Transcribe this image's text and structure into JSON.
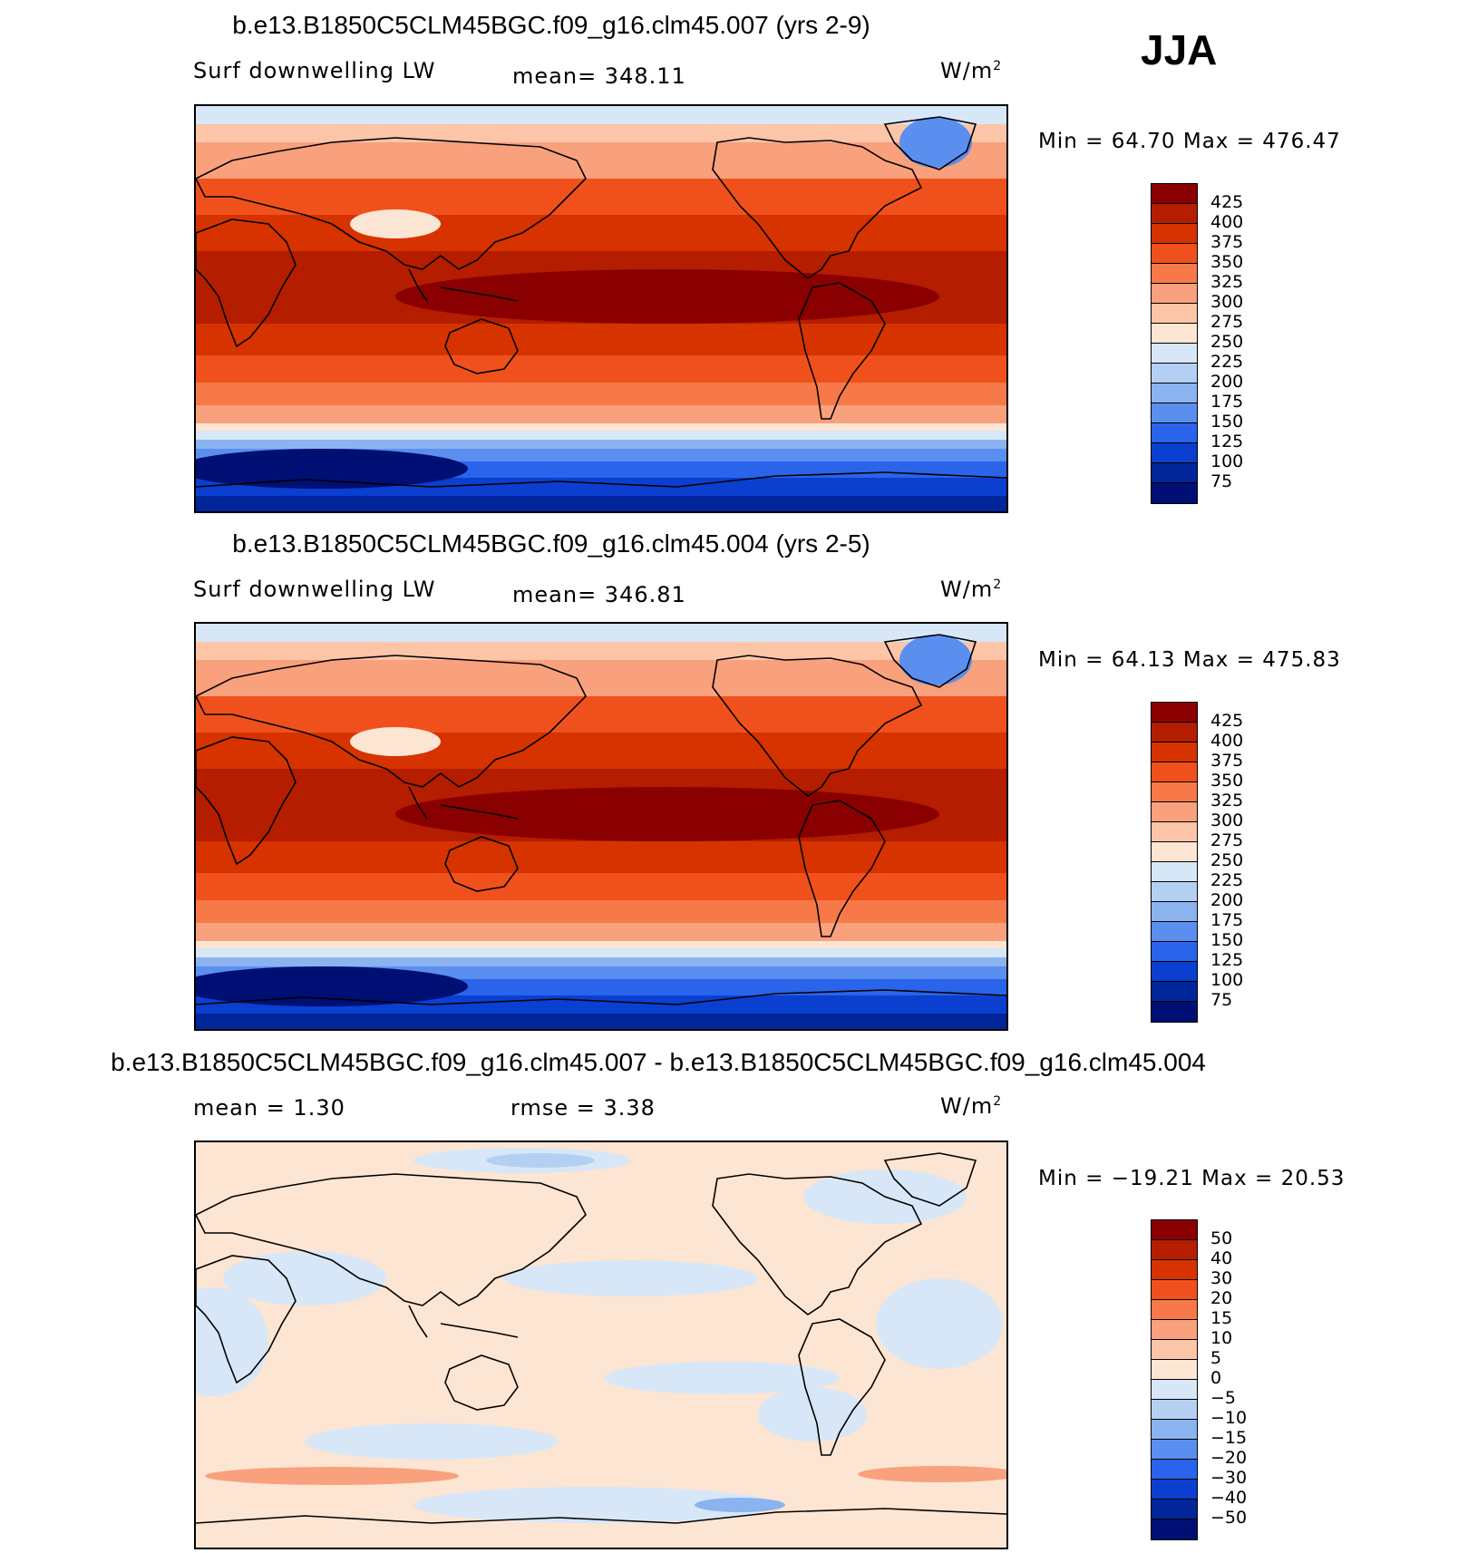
{
  "season": "JJA",
  "panels": [
    {
      "title": "b.e13.B1850C5CLM45BGC.f09_g16.clm45.007 (yrs 2-9)",
      "left_label": "Surf downwelling LW",
      "center_label": "mean= 348.11",
      "units": "W/m",
      "units_sup": "2",
      "minmax": "Min =   64.70 Max = 476.47",
      "colorbar": {
        "labels": [
          "425",
          "400",
          "375",
          "350",
          "325",
          "300",
          "275",
          "250",
          "225",
          "200",
          "175",
          "150",
          "125",
          "100",
          "75"
        ],
        "colors": [
          "#8a0000",
          "#b51d00",
          "#d63300",
          "#f0511c",
          "#f7794a",
          "#f9a07c",
          "#fcc5a8",
          "#fde5d3",
          "#d7e7f7",
          "#b3d0f3",
          "#8bb3f0",
          "#5a8ff0",
          "#2a64ea",
          "#0a3fd0",
          "#00269a",
          "#000f73"
        ]
      },
      "map_style": "absolute"
    },
    {
      "title": "b.e13.B1850C5CLM45BGC.f09_g16.clm45.004 (yrs 2-5)",
      "left_label": "Surf downwelling LW",
      "center_label": "mean= 346.81",
      "units": "W/m",
      "units_sup": "2",
      "minmax": "Min =   64.13 Max = 475.83",
      "colorbar": {
        "labels": [
          "425",
          "400",
          "375",
          "350",
          "325",
          "300",
          "275",
          "250",
          "225",
          "200",
          "175",
          "150",
          "125",
          "100",
          "75"
        ],
        "colors": [
          "#8a0000",
          "#b51d00",
          "#d63300",
          "#f0511c",
          "#f7794a",
          "#f9a07c",
          "#fcc5a8",
          "#fde5d3",
          "#d7e7f7",
          "#b3d0f3",
          "#8bb3f0",
          "#5a8ff0",
          "#2a64ea",
          "#0a3fd0",
          "#00269a",
          "#000f73"
        ]
      },
      "map_style": "absolute"
    },
    {
      "title": "b.e13.B1850C5CLM45BGC.f09_g16.clm45.007 - b.e13.B1850C5CLM45BGC.f09_g16.clm45.004",
      "left_label": "mean =    1.30",
      "center_label": "rmse =    3.38",
      "units": "W/m",
      "units_sup": "2",
      "minmax": "Min = −19.21 Max =   20.53",
      "colorbar": {
        "labels": [
          "50",
          "40",
          "30",
          "20",
          "15",
          "10",
          "5",
          "0",
          "−5",
          "−10",
          "−15",
          "−20",
          "−30",
          "−40",
          "−50"
        ],
        "colors": [
          "#8a0000",
          "#b51d00",
          "#d63300",
          "#f0511c",
          "#f7794a",
          "#f9a07c",
          "#fcc5a8",
          "#fde5d3",
          "#d7e7f7",
          "#b3d0f3",
          "#8bb3f0",
          "#5a8ff0",
          "#2a64ea",
          "#0a3fd0",
          "#00269a",
          "#000f73"
        ]
      },
      "map_style": "difference"
    }
  ]
}
